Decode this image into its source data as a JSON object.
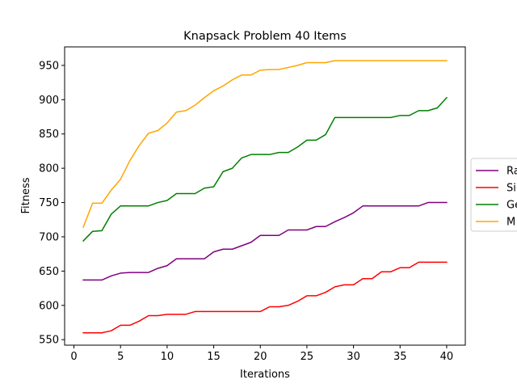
{
  "chart_data": {
    "type": "line",
    "title": "Knapsack Problem 40 Items",
    "xlabel": "Iterations",
    "ylabel": "Fitness",
    "xlim": [
      -1,
      42
    ],
    "ylim": [
      542,
      977
    ],
    "xticks": [
      0,
      5,
      10,
      15,
      20,
      25,
      30,
      35,
      40
    ],
    "yticks": [
      550,
      600,
      650,
      700,
      750,
      800,
      850,
      900,
      950
    ],
    "grid": false,
    "legend_placement": "center-right",
    "x": [
      1,
      2,
      3,
      4,
      5,
      6,
      7,
      8,
      9,
      10,
      11,
      12,
      13,
      14,
      15,
      16,
      17,
      18,
      19,
      20,
      21,
      22,
      23,
      24,
      25,
      26,
      27,
      28,
      29,
      30,
      31,
      32,
      33,
      34,
      35,
      36,
      37,
      38,
      39,
      40
    ],
    "series": [
      {
        "name": "Ra",
        "color": "#800080",
        "values": [
          637,
          637,
          637,
          643,
          647,
          648,
          648,
          648,
          654,
          658,
          668,
          668,
          668,
          668,
          678,
          682,
          682,
          687,
          692,
          702,
          702,
          702,
          710,
          710,
          710,
          715,
          715,
          722,
          728,
          735,
          745,
          745,
          745,
          745,
          745,
          745,
          745,
          750,
          750,
          750
        ]
      },
      {
        "name": "Si",
        "color": "#ff0000",
        "values": [
          560,
          560,
          560,
          563,
          571,
          571,
          577,
          585,
          585,
          587,
          587,
          587,
          591,
          591,
          591,
          591,
          591,
          591,
          591,
          591,
          598,
          598,
          600,
          606,
          614,
          614,
          619,
          627,
          630,
          630,
          639,
          639,
          649,
          649,
          655,
          655,
          663,
          663,
          663,
          663
        ]
      },
      {
        "name": "Ge",
        "color": "#008000",
        "values": [
          694,
          708,
          709,
          733,
          745,
          745,
          745,
          745,
          750,
          753,
          763,
          763,
          763,
          771,
          773,
          795,
          800,
          815,
          820,
          820,
          820,
          823,
          823,
          831,
          841,
          841,
          849,
          874,
          874,
          874,
          874,
          874,
          874,
          874,
          877,
          877,
          884,
          884,
          888,
          903
        ]
      },
      {
        "name": "M",
        "color": "#ffa500",
        "values": [
          714,
          749,
          749,
          768,
          784,
          811,
          833,
          851,
          855,
          866,
          882,
          884,
          892,
          903,
          913,
          920,
          929,
          936,
          936,
          943,
          944,
          944,
          947,
          950,
          954,
          954,
          954,
          957,
          957,
          957,
          957,
          957,
          957,
          957,
          957,
          957,
          957,
          957,
          957,
          957
        ]
      }
    ]
  }
}
